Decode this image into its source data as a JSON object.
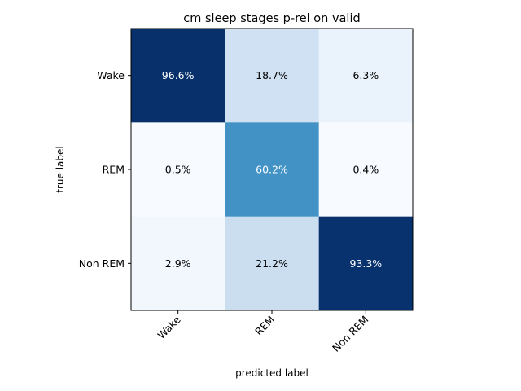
{
  "chart_data": {
    "type": "heatmap",
    "title": "cm sleep stages p-rel on valid",
    "xlabel": "predicted label",
    "ylabel": "true label",
    "x_categories": [
      "Wake",
      "REM",
      "Non REM"
    ],
    "y_categories": [
      "Wake",
      "REM",
      "Non REM"
    ],
    "colormap": "Blues",
    "value_format": "percent",
    "values": [
      [
        96.6,
        18.7,
        6.3
      ],
      [
        0.5,
        60.2,
        0.4
      ],
      [
        2.9,
        21.2,
        93.3
      ]
    ],
    "labels": [
      [
        "96.6%",
        "18.7%",
        "6.3%"
      ],
      [
        "0.5%",
        "60.2%",
        "0.4%"
      ],
      [
        "2.9%",
        "21.2%",
        "93.3%"
      ]
    ],
    "cell_colors": [
      [
        "#08306b",
        "#cfe1f2",
        "#eaf3fb"
      ],
      [
        "#f7fbff",
        "#4292c6",
        "#f7fbff"
      ],
      [
        "#f2f7fd",
        "#cadef0",
        "#08326e"
      ]
    ],
    "text_colors": [
      [
        "#ffffff",
        "#000000",
        "#000000"
      ],
      [
        "#000000",
        "#ffffff",
        "#000000"
      ],
      [
        "#000000",
        "#000000",
        "#ffffff"
      ]
    ]
  }
}
